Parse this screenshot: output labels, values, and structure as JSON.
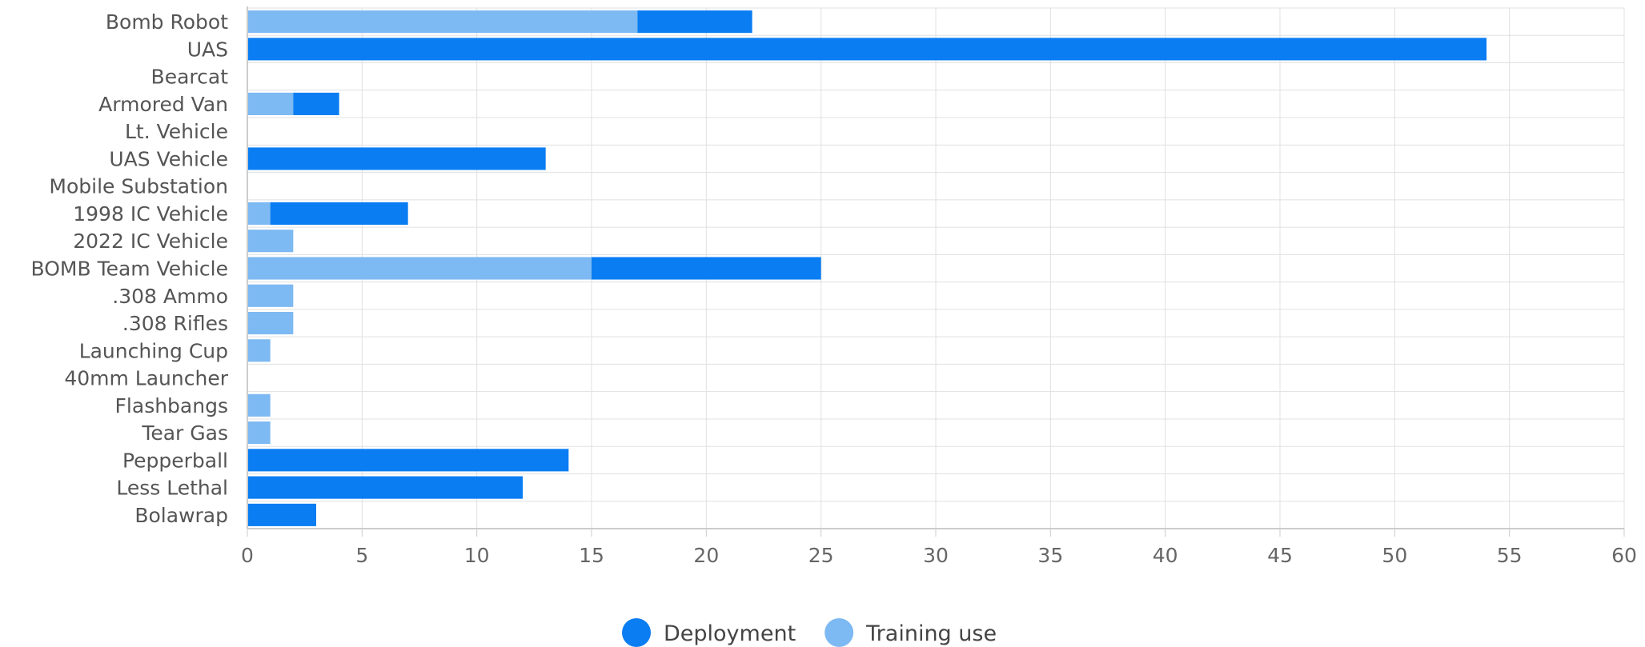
{
  "chart_data": {
    "type": "bar",
    "orientation": "horizontal",
    "stacked": true,
    "categories": [
      "Bomb Robot",
      "UAS",
      "Bearcat",
      "Armored Van",
      "Lt. Vehicle",
      "UAS Vehicle",
      "Mobile Substation",
      "1998 IC Vehicle",
      "2022 IC Vehicle",
      "BOMB Team Vehicle",
      ".308 Ammo",
      ".308 Rifles",
      "Launching Cup",
      "40mm Launcher",
      "Flashbangs",
      "Tear Gas",
      "Pepperball",
      "Less Lethal",
      "Bolawrap"
    ],
    "series": [
      {
        "name": "Training use",
        "color": "#7DB9F2",
        "values": [
          17,
          0,
          0,
          2,
          0,
          0,
          0,
          1,
          2,
          15,
          2,
          2,
          1,
          0,
          1,
          1,
          0,
          0,
          0
        ]
      },
      {
        "name": "Deployment",
        "color": "#0A7DF2",
        "values": [
          5,
          54,
          0,
          2,
          0,
          13,
          0,
          6,
          0,
          10,
          0,
          0,
          0,
          0,
          0,
          0,
          14,
          12,
          3
        ]
      }
    ],
    "xlim": [
      0,
      60
    ],
    "xticks": [
      0,
      5,
      10,
      15,
      20,
      25,
      30,
      35,
      40,
      45,
      50,
      55,
      60
    ],
    "grid": true,
    "legend": {
      "position": "bottom-center",
      "entries": [
        {
          "label": "Deployment",
          "color": "#0A7DF2"
        },
        {
          "label": "Training use",
          "color": "#7DB9F2"
        }
      ]
    }
  }
}
